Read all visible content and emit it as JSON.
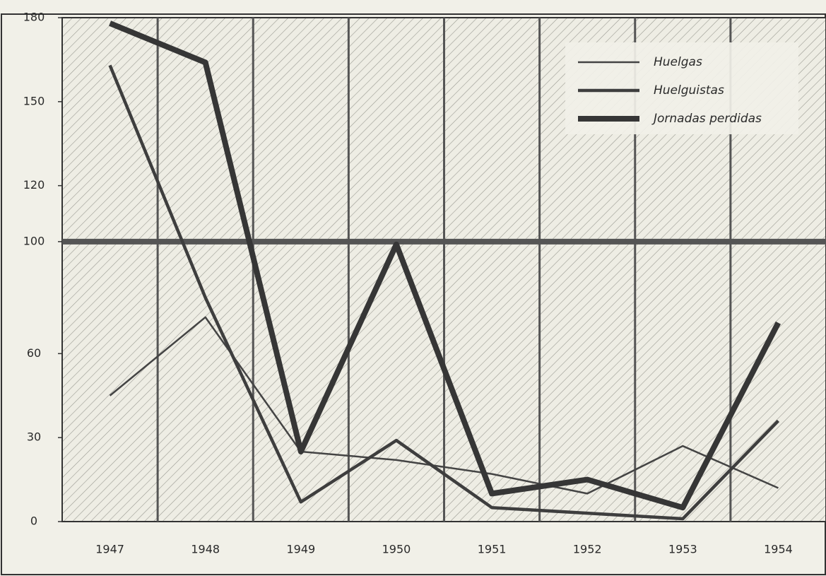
{
  "chart_data": {
    "type": "line",
    "categories": [
      "1947",
      "1948",
      "1949",
      "1950",
      "1951",
      "1952",
      "1953",
      "1954"
    ],
    "series": [
      {
        "name": "Huelgas",
        "color": "#444444",
        "values": [
          45,
          73,
          25,
          22,
          17,
          10,
          27,
          12
        ]
      },
      {
        "name": "Huelguistas",
        "color": "#3e3e3e",
        "values": [
          163,
          80,
          7,
          29,
          5,
          3,
          1,
          36
        ]
      },
      {
        "name": "Jornadas perdidas",
        "color": "#363636",
        "values": [
          178,
          164,
          25,
          99,
          10,
          15,
          5,
          71
        ]
      }
    ],
    "reference_line": 100,
    "ylim": [
      0,
      180
    ],
    "yticks": [
      0,
      30,
      60,
      100,
      120,
      150,
      180
    ],
    "legend": "upper right"
  }
}
